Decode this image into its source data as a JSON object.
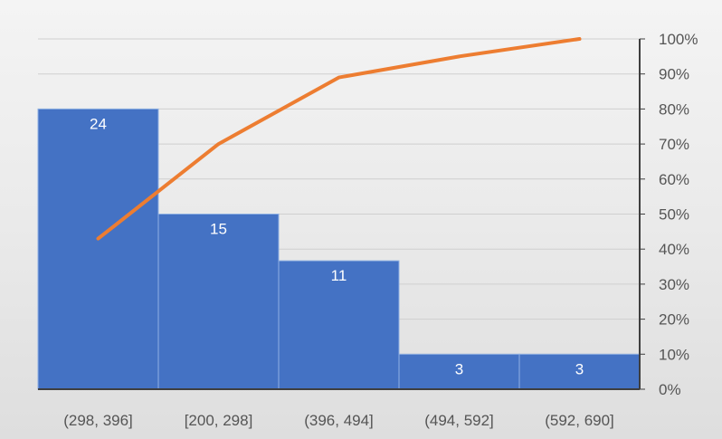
{
  "chart_data": {
    "type": "bar",
    "subtype": "pareto",
    "categories": [
      "(298, 396]",
      "[200, 298]",
      "(396, 494]",
      "(494, 592]",
      "(592, 690]"
    ],
    "series": [
      {
        "values": [
          24,
          15,
          11,
          3,
          3
        ],
        "color": "#4472c4",
        "kind": "bar",
        "axis": "left"
      },
      {
        "values": [
          0.43,
          0.7,
          0.89,
          0.95,
          1.0
        ],
        "color": "#ed7d31",
        "kind": "line",
        "axis": "right"
      }
    ],
    "y_left": {
      "min": 0,
      "max": 30,
      "visible": false
    },
    "y_right": {
      "min": 0,
      "max": 1,
      "ticks": [
        "0%",
        "10%",
        "20%",
        "30%",
        "40%",
        "50%",
        "60%",
        "70%",
        "80%",
        "90%",
        "100%"
      ]
    },
    "data_labels": [
      "24",
      "15",
      "11",
      "3",
      "3"
    ],
    "grid": true,
    "legend": false
  }
}
